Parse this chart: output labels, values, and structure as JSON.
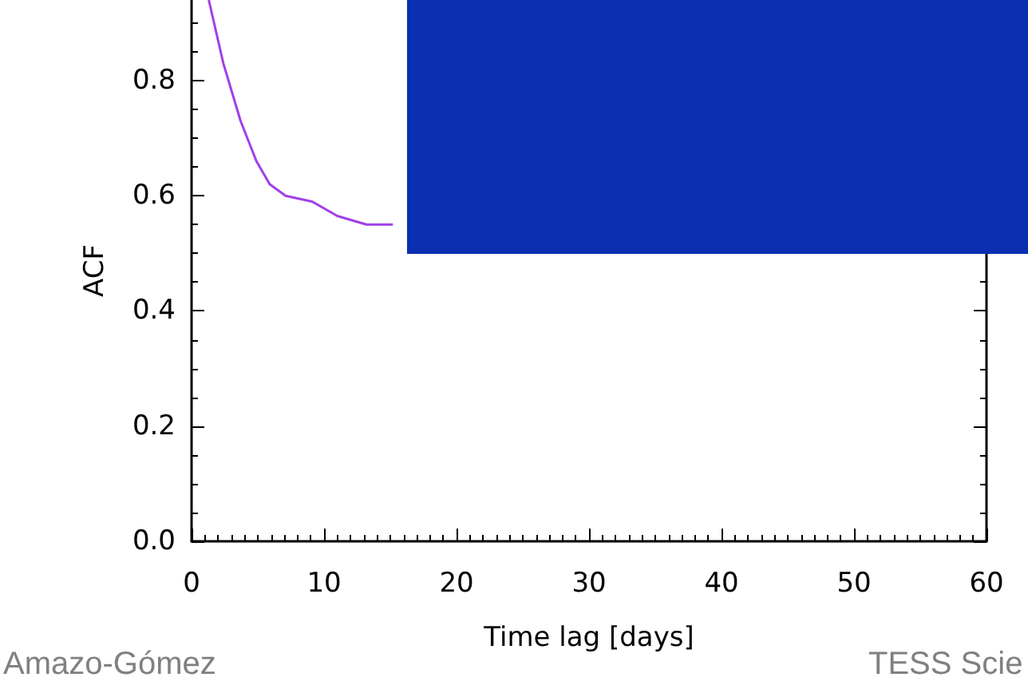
{
  "chart_data": {
    "type": "line",
    "xlabel": "Time lag [days]",
    "ylabel": "ACF",
    "x": [
      1.3,
      2.4,
      3.7,
      4.9,
      5.9,
      7.1,
      9.1,
      11,
      13.2,
      15.2
    ],
    "series": [
      {
        "color": "#a040e8",
        "values": [
          0.94,
          0.83,
          0.73,
          0.66,
          0.62,
          0.6,
          0.59,
          0.565,
          0.55,
          0.55
        ]
      }
    ],
    "xlim": [
      0,
      60
    ],
    "xticks": [
      0,
      10,
      20,
      30,
      40,
      50,
      60
    ],
    "ylim": [
      0,
      0.94
    ],
    "yticks": [
      {
        "value": 0,
        "label": "0.0"
      },
      0.2,
      0.4,
      0.6,
      0.8
    ],
    "grid": false,
    "marker": "none",
    "line_style": "solid",
    "annotations": [
      "Amazo-Gómez",
      "TESS Scie"
    ]
  }
}
